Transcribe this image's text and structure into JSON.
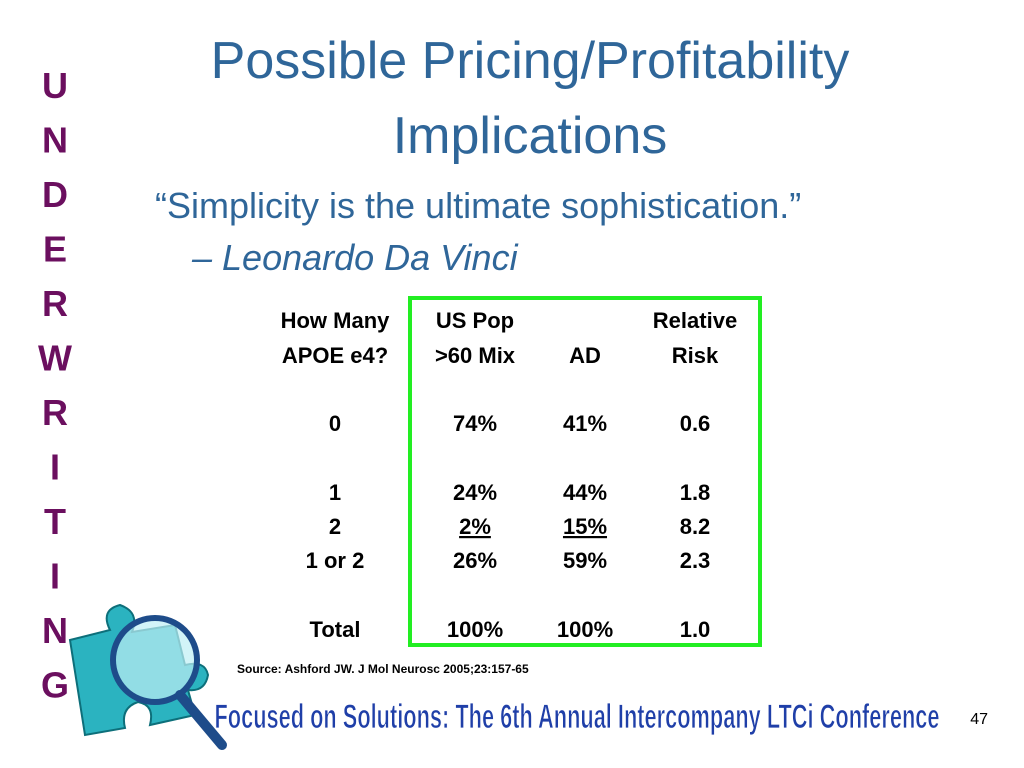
{
  "title_lines": [
    "Possible Pricing/Profitability",
    "Implications"
  ],
  "quote": "“Simplicity is the ultimate sophistication.”",
  "attribution": "– Leonardo Da Vinci",
  "side_letters": [
    "U",
    "N",
    "D",
    "E",
    "R",
    "W",
    "R",
    "I",
    "T",
    "I",
    "N",
    "G"
  ],
  "table": {
    "header_row1": [
      "How Many",
      "US Pop",
      "Relative"
    ],
    "header_row2": [
      "APOE e4?",
      ">60 Mix",
      "AD",
      "Risk"
    ],
    "rows": [
      [
        "0",
        "74%",
        "41%",
        "0.6"
      ],
      [
        "1",
        "24%",
        "44%",
        "1.8"
      ],
      [
        "2",
        "2%",
        "15%",
        "8.2"
      ],
      [
        "1 or 2",
        "26%",
        "59%",
        "2.3"
      ],
      [
        "Total",
        "100%",
        "100%",
        "1.0"
      ]
    ]
  },
  "source": "Source: Ashford JW. J Mol Neurosc 2005;23:157-65",
  "footer": "Focused on Solutions:  The 6th Annual Intercompany LTCi Conference",
  "page_number": "47"
}
